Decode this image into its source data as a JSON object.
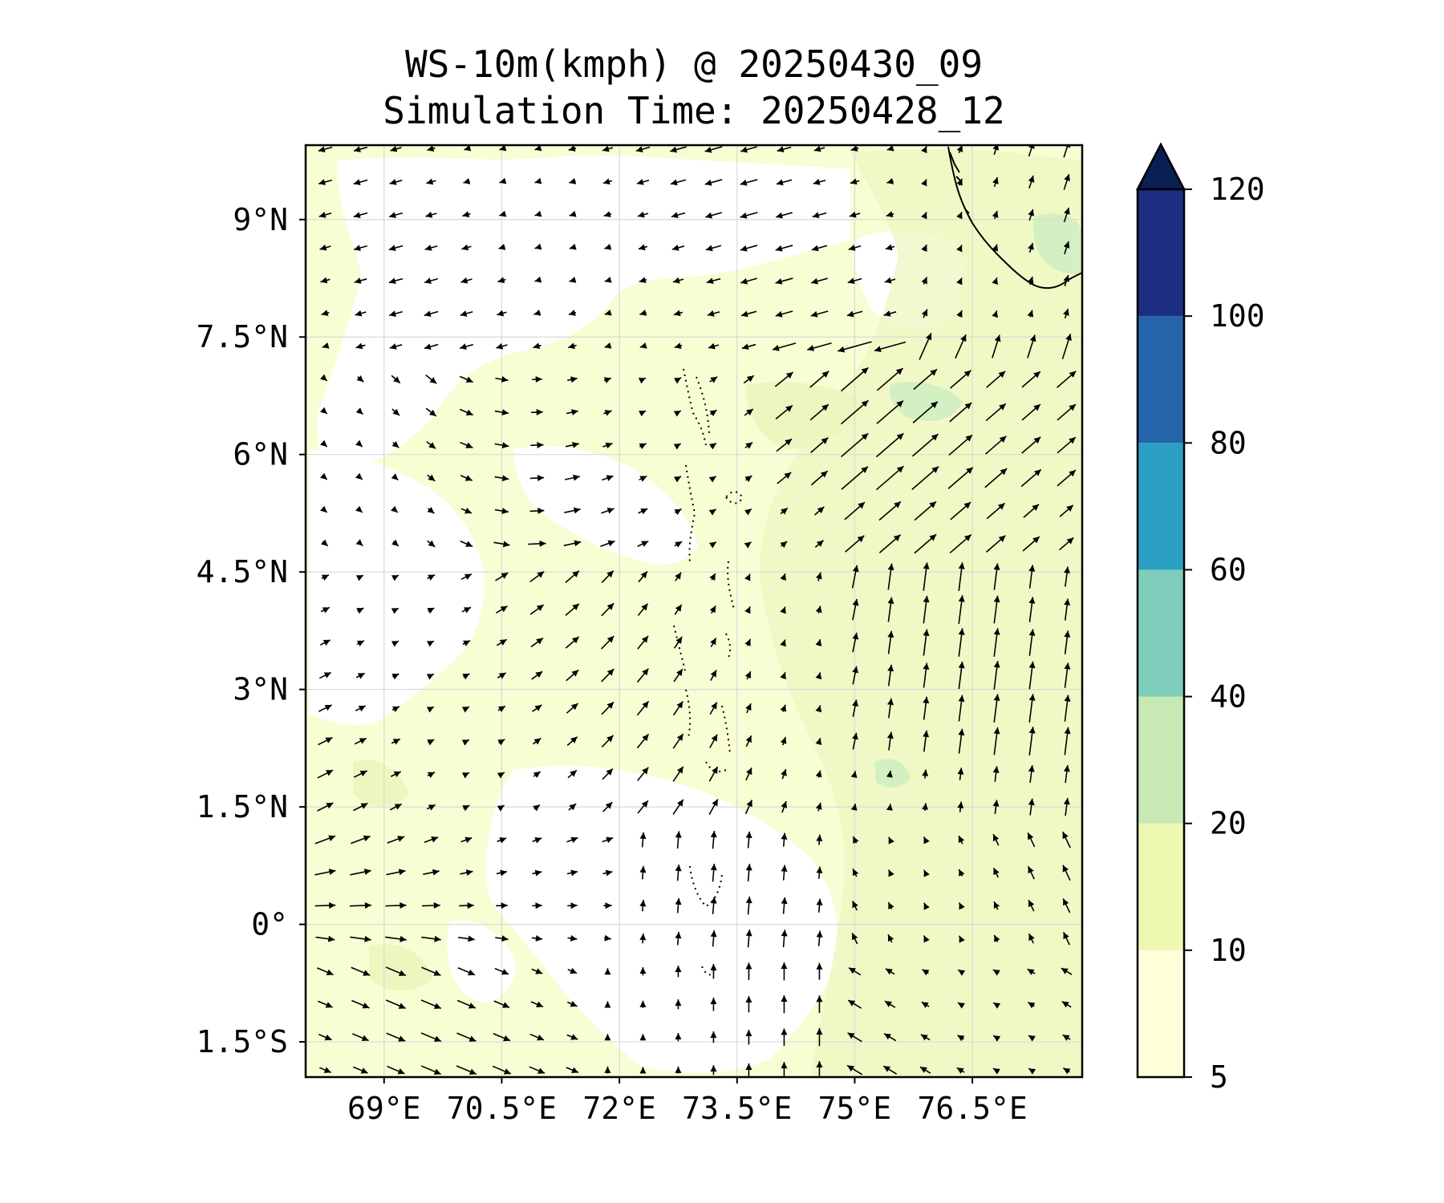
{
  "title": "WS-10m(kmph) @ 20250430_09",
  "subtitle": "Simulation Time: 20250428_12",
  "map": {
    "lon_range": [
      68.0,
      77.9
    ],
    "lat_range": [
      -1.95,
      9.95
    ],
    "lat_ticks": [
      {
        "value": 9,
        "label": "9°N"
      },
      {
        "value": 7.5,
        "label": "7.5°N"
      },
      {
        "value": 6,
        "label": "6°N"
      },
      {
        "value": 4.5,
        "label": "4.5°N"
      },
      {
        "value": 3,
        "label": "3°N"
      },
      {
        "value": 1.5,
        "label": "1.5°N"
      },
      {
        "value": 0,
        "label": "0°"
      },
      {
        "value": -1.5,
        "label": "1.5°S"
      }
    ],
    "lon_ticks": [
      {
        "value": 69,
        "label": "69°E"
      },
      {
        "value": 70.5,
        "label": "70.5°E"
      },
      {
        "value": 72,
        "label": "72°E"
      },
      {
        "value": 73.5,
        "label": "73.5°E"
      },
      {
        "value": 75,
        "label": "75°E"
      },
      {
        "value": 76.5,
        "label": "76.5°E"
      }
    ],
    "gridlines": true,
    "vectors": "wind direction arrows at 10m"
  },
  "colorbar": {
    "position": "right",
    "extend": "max",
    "levels": [
      5,
      10,
      20,
      40,
      60,
      80,
      100,
      120
    ],
    "labels": [
      "5",
      "10",
      "20",
      "40",
      "60",
      "80",
      "100",
      "120"
    ],
    "colors": [
      "#ffffd9",
      "#edf8b1",
      "#c7e9b4",
      "#7fcdbb",
      "#2c9fc4",
      "#2464ab",
      "#1d2e80",
      "#0a1f55"
    ]
  },
  "colors": {
    "ocean_calm": "#ffffff",
    "light_wind": "#f9fdd3",
    "moderate_wind": "#ecf7c0",
    "strong_wind": "#d4efc1"
  }
}
